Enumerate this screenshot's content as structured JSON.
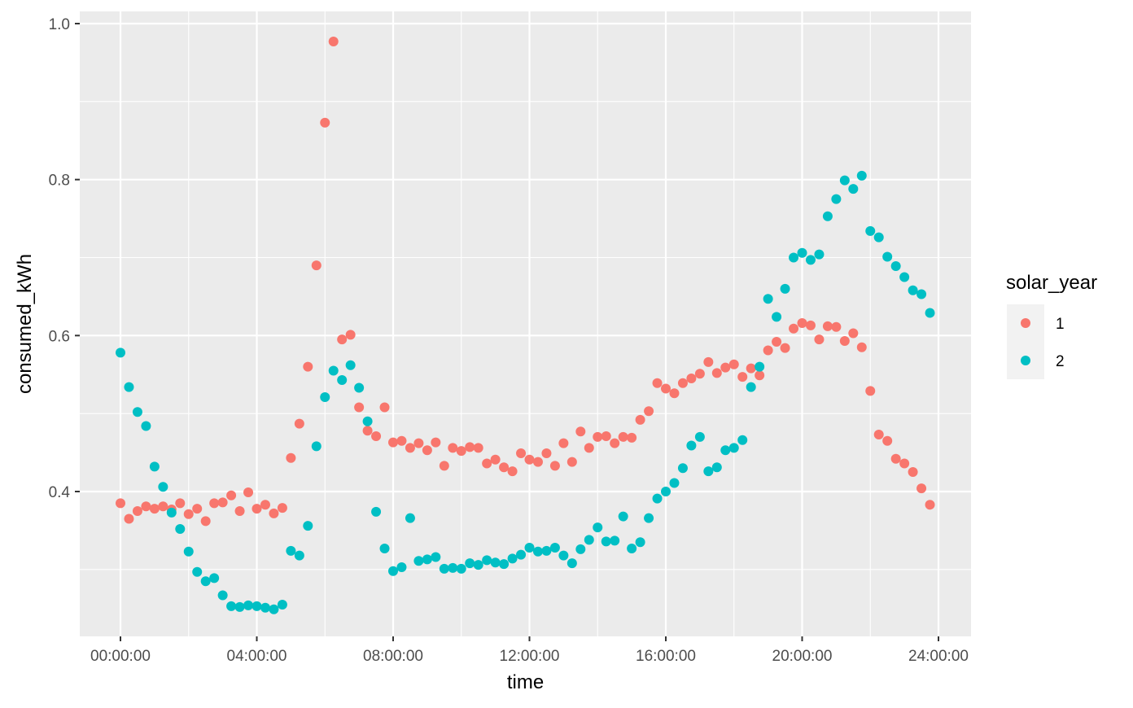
{
  "chart_data": {
    "type": "scatter",
    "xlabel": "time",
    "ylabel": "consumed_kWh",
    "x_unit": "hours",
    "xlim": [
      0,
      24
    ],
    "ylim": [
      0.245,
      1.0
    ],
    "x_ticks": [
      0,
      4,
      8,
      12,
      16,
      20,
      24
    ],
    "x_tick_labels": [
      "00:00:00",
      "04:00:00",
      "08:00:00",
      "12:00:00",
      "16:00:00",
      "20:00:00",
      "24:00:00"
    ],
    "y_ticks": [
      0.4,
      0.6,
      0.8,
      1.0
    ],
    "y_tick_labels": [
      "0.4",
      "0.6",
      "0.8",
      "1.0"
    ],
    "grid": true,
    "legend": {
      "title": "solar_year",
      "position": "right"
    },
    "colors": {
      "1": "#F8766D",
      "2": "#00BFC4",
      "panel_bg": "#EBEBEB",
      "grid": "#FFFFFF"
    },
    "series": [
      {
        "name": "1",
        "x": [
          0,
          0.25,
          0.5,
          0.75,
          1,
          1.25,
          1.5,
          1.75,
          2,
          2.25,
          2.5,
          2.75,
          3,
          3.25,
          3.5,
          3.75,
          4,
          4.25,
          4.5,
          4.75,
          5,
          5.25,
          5.5,
          5.75,
          6,
          6.25,
          6.5,
          6.75,
          7,
          7.25,
          7.5,
          7.75,
          8,
          8.25,
          8.5,
          8.75,
          9,
          9.25,
          9.5,
          9.75,
          10,
          10.25,
          10.5,
          10.75,
          11,
          11.25,
          11.5,
          11.75,
          12,
          12.25,
          12.5,
          12.75,
          13,
          13.25,
          13.5,
          13.75,
          14,
          14.25,
          14.5,
          14.75,
          15,
          15.25,
          15.5,
          15.75,
          16,
          16.25,
          16.5,
          16.75,
          17,
          17.25,
          17.5,
          17.75,
          18,
          18.25,
          18.5,
          18.75,
          19,
          19.25,
          19.5,
          19.75,
          20,
          20.25,
          20.5,
          20.75,
          21,
          21.25,
          21.5,
          21.75,
          22,
          22.25,
          22.5,
          22.75,
          23,
          23.25,
          23.5,
          23.75
        ],
        "y": [
          0.385,
          0.365,
          0.375,
          0.381,
          0.378,
          0.381,
          0.377,
          0.385,
          0.371,
          0.378,
          0.362,
          0.385,
          0.386,
          0.395,
          0.375,
          0.399,
          0.378,
          0.383,
          0.372,
          0.379,
          0.443,
          0.487,
          0.56,
          0.69,
          0.873,
          0.977,
          0.595,
          0.601,
          0.508,
          0.478,
          0.471,
          0.508,
          0.463,
          0.465,
          0.456,
          0.462,
          0.453,
          0.463,
          0.433,
          0.456,
          0.452,
          0.457,
          0.456,
          0.436,
          0.441,
          0.431,
          0.426,
          0.449,
          0.441,
          0.438,
          0.449,
          0.433,
          0.462,
          0.438,
          0.477,
          0.456,
          0.47,
          0.471,
          0.462,
          0.47,
          0.469,
          0.492,
          0.503,
          0.539,
          0.532,
          0.526,
          0.539,
          0.545,
          0.551,
          0.566,
          0.552,
          0.559,
          0.563,
          0.547,
          0.558,
          0.549,
          0.581,
          0.592,
          0.584,
          0.609,
          0.616,
          0.613,
          0.595,
          0.612,
          0.611,
          0.593,
          0.603,
          0.585,
          0.529,
          0.473,
          0.465,
          0.442,
          0.436,
          0.425,
          0.404,
          0.383
        ]
      },
      {
        "name": "2",
        "x": [
          0,
          0.25,
          0.5,
          0.75,
          1,
          1.25,
          1.5,
          1.75,
          2,
          2.25,
          2.5,
          2.75,
          3,
          3.25,
          3.5,
          3.75,
          4,
          4.25,
          4.5,
          4.75,
          5,
          5.25,
          5.5,
          5.75,
          6,
          6.25,
          6.5,
          6.75,
          7,
          7.25,
          7.5,
          7.75,
          8,
          8.25,
          8.5,
          8.75,
          9,
          9.25,
          9.5,
          9.75,
          10,
          10.25,
          10.5,
          10.75,
          11,
          11.25,
          11.5,
          11.75,
          12,
          12.25,
          12.5,
          12.75,
          13,
          13.25,
          13.5,
          13.75,
          14,
          14.25,
          14.5,
          14.75,
          15,
          15.25,
          15.5,
          15.75,
          16,
          16.25,
          16.5,
          16.75,
          17,
          17.25,
          17.5,
          17.75,
          18,
          18.25,
          18.5,
          18.75,
          19,
          19.25,
          19.5,
          19.75,
          20,
          20.25,
          20.5,
          20.75,
          21,
          21.25,
          21.5,
          21.75,
          22,
          22.25,
          22.5,
          22.75,
          23,
          23.25,
          23.5,
          23.75
        ],
        "y": [
          0.578,
          0.534,
          0.502,
          0.484,
          0.432,
          0.406,
          0.373,
          0.352,
          0.323,
          0.297,
          0.285,
          0.289,
          0.267,
          0.253,
          0.252,
          0.254,
          0.253,
          0.251,
          0.249,
          0.255,
          0.324,
          0.318,
          0.356,
          0.458,
          0.521,
          0.555,
          0.543,
          0.562,
          0.533,
          0.49,
          0.374,
          0.327,
          0.298,
          0.303,
          0.366,
          0.311,
          0.313,
          0.316,
          0.301,
          0.302,
          0.301,
          0.308,
          0.306,
          0.312,
          0.309,
          0.307,
          0.314,
          0.319,
          0.328,
          0.323,
          0.324,
          0.328,
          0.318,
          0.308,
          0.326,
          0.338,
          0.354,
          0.336,
          0.337,
          0.368,
          0.327,
          0.335,
          0.366,
          0.391,
          0.4,
          0.411,
          0.43,
          0.459,
          0.47,
          0.426,
          0.431,
          0.453,
          0.456,
          0.466,
          0.534,
          0.56,
          0.647,
          0.624,
          0.66,
          0.7,
          0.706,
          0.697,
          0.704,
          0.753,
          0.775,
          0.799,
          0.788,
          0.805,
          0.734,
          0.726,
          0.701,
          0.689,
          0.675,
          0.658,
          0.653,
          0.629
        ]
      }
    ]
  }
}
